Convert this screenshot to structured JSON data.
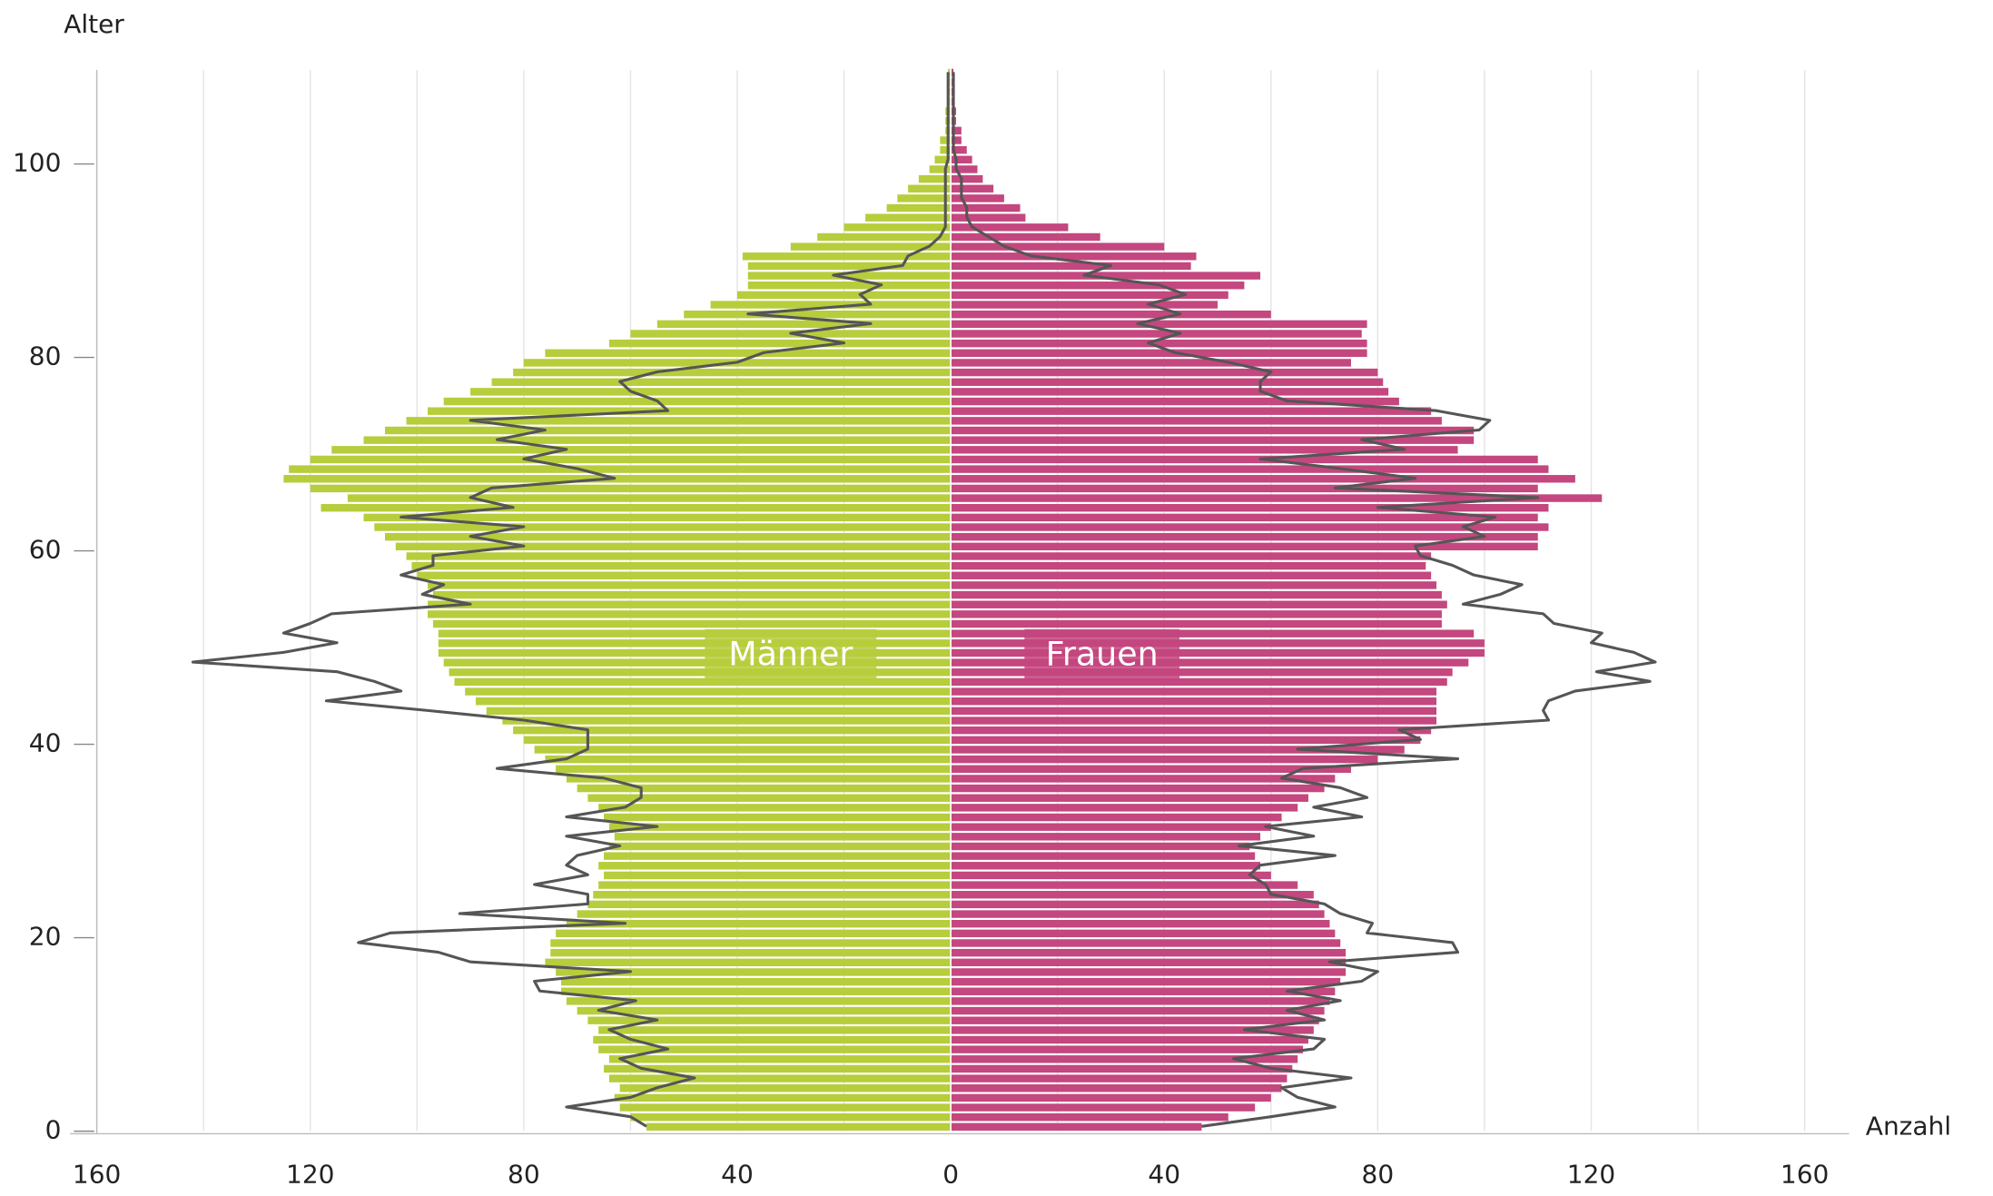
{
  "chart_data": {
    "type": "pyramid",
    "xlabel": "Alter",
    "ylabel": "Anzahl",
    "x": [
      0,
      1,
      2,
      3,
      4,
      5,
      6,
      7,
      8,
      9,
      10,
      11,
      12,
      13,
      14,
      15,
      16,
      17,
      18,
      19,
      20,
      21,
      22,
      23,
      24,
      25,
      26,
      27,
      28,
      29,
      30,
      31,
      32,
      33,
      34,
      35,
      36,
      37,
      38,
      39,
      40,
      41,
      42,
      43,
      44,
      45,
      46,
      47,
      48,
      49,
      50,
      51,
      52,
      53,
      54,
      55,
      56,
      57,
      58,
      59,
      60,
      61,
      62,
      63,
      64,
      65,
      66,
      67,
      68,
      69,
      70,
      71,
      72,
      73,
      74,
      75,
      76,
      77,
      78,
      79,
      80,
      81,
      82,
      83,
      84,
      85,
      86,
      87,
      88,
      89,
      90,
      91,
      92,
      93,
      94,
      95,
      96,
      97,
      98,
      99,
      100,
      101,
      102,
      103,
      104,
      105,
      106,
      107,
      108,
      109
    ],
    "xlim": [
      0,
      110
    ],
    "xticks": [
      0,
      20,
      40,
      60,
      80,
      100
    ],
    "ylim": [
      0,
      160
    ],
    "yticks": [
      0,
      40,
      80,
      120,
      160
    ],
    "minor_yticks": [
      20,
      60,
      100,
      140
    ],
    "grid": true,
    "series": [
      {
        "name": "Männer",
        "kind": "bar",
        "side": "left",
        "color": "#b7cd3c",
        "values": [
          57,
          60,
          62,
          63,
          62,
          64,
          65,
          64,
          66,
          67,
          66,
          68,
          70,
          72,
          73,
          73,
          74,
          76,
          75,
          75,
          74,
          72,
          70,
          68,
          67,
          66,
          65,
          66,
          65,
          64,
          63,
          64,
          65,
          66,
          68,
          70,
          72,
          74,
          76,
          78,
          80,
          82,
          84,
          87,
          89,
          91,
          93,
          94,
          95,
          96,
          96,
          96,
          97,
          98,
          98,
          97,
          98,
          100,
          101,
          102,
          104,
          106,
          108,
          110,
          118,
          113,
          120,
          125,
          124,
          120,
          116,
          110,
          106,
          102,
          98,
          95,
          90,
          86,
          82,
          80,
          76,
          64,
          60,
          55,
          50,
          45,
          40,
          38,
          38,
          38,
          39,
          30,
          25,
          20,
          16,
          12,
          10,
          8,
          6,
          4,
          3,
          2,
          2,
          1,
          1,
          1,
          0.5,
          0.5,
          0.5,
          0.5
        ]
      },
      {
        "name": "Frauen",
        "kind": "bar",
        "side": "right",
        "color": "#c4477f",
        "values": [
          47,
          52,
          57,
          60,
          62,
          63,
          64,
          65,
          66,
          67,
          68,
          69,
          70,
          71,
          72,
          73,
          74,
          74,
          74,
          73,
          72,
          71,
          70,
          69,
          68,
          65,
          60,
          58,
          57,
          56,
          58,
          60,
          62,
          65,
          67,
          70,
          72,
          75,
          80,
          85,
          88,
          90,
          91,
          91,
          91,
          91,
          93,
          94,
          97,
          100,
          100,
          98,
          92,
          92,
          93,
          92,
          91,
          90,
          89,
          90,
          110,
          110,
          112,
          110,
          112,
          122,
          110,
          117,
          112,
          110,
          95,
          98,
          98,
          92,
          90,
          84,
          82,
          81,
          80,
          75,
          78,
          78,
          77,
          78,
          60,
          50,
          52,
          55,
          58,
          45,
          46,
          40,
          28,
          22,
          14,
          13,
          10,
          8,
          6,
          5,
          4,
          3,
          2,
          2,
          1,
          1,
          0.5,
          0.5,
          0.5,
          0.5
        ]
      },
      {
        "kind": "line",
        "side": "left",
        "color": "#555555",
        "values": [
          57,
          60,
          72,
          60,
          55,
          48,
          58,
          62,
          53,
          60,
          64,
          55,
          66,
          59,
          77,
          78,
          60,
          90,
          96,
          111,
          105,
          61,
          92,
          68,
          68,
          78,
          68,
          72,
          70,
          62,
          72,
          55,
          72,
          61,
          58,
          58,
          65,
          85,
          72,
          68,
          68,
          68,
          80,
          98,
          117,
          103,
          108,
          115,
          142,
          125,
          115,
          125,
          120,
          116,
          90,
          99,
          95,
          103,
          97,
          97,
          80,
          90,
          80,
          103,
          82,
          90,
          86,
          63,
          70,
          80,
          72,
          85,
          76,
          90,
          53,
          55,
          60,
          62,
          55,
          40,
          35,
          20,
          30,
          15,
          38,
          15,
          17,
          13,
          22,
          9,
          8,
          4,
          2,
          1,
          1,
          1,
          1,
          1,
          1,
          1,
          0.5,
          0.5,
          0.5,
          0.5,
          0.5,
          0.5,
          0.5,
          0.5,
          0.5,
          0.5
        ]
      },
      {
        "kind": "line",
        "side": "right",
        "color": "#555555",
        "values": [
          47,
          60,
          72,
          65,
          62,
          75,
          60,
          53,
          68,
          70,
          55,
          70,
          63,
          73,
          63,
          77,
          80,
          71,
          95,
          94,
          78,
          79,
          73,
          70,
          60,
          59,
          56,
          58,
          72,
          54,
          68,
          59,
          77,
          68,
          78,
          73,
          62,
          66,
          95,
          65,
          88,
          84,
          112,
          111,
          112,
          117,
          131,
          121,
          132,
          128,
          120,
          122,
          113,
          111,
          96,
          103,
          107,
          98,
          94,
          88,
          87,
          100,
          96,
          102,
          80,
          110,
          72,
          87,
          73,
          58,
          85,
          77,
          99,
          101,
          91,
          63,
          58,
          58,
          60,
          52,
          42,
          37,
          43,
          35,
          43,
          37,
          44,
          39,
          25,
          30,
          15,
          10,
          7,
          4,
          3,
          3,
          2,
          2,
          2,
          1,
          1,
          0.5,
          0.5,
          0.5,
          0.5,
          0.5,
          0.5,
          0.5,
          0.5,
          0.5
        ]
      }
    ]
  }
}
